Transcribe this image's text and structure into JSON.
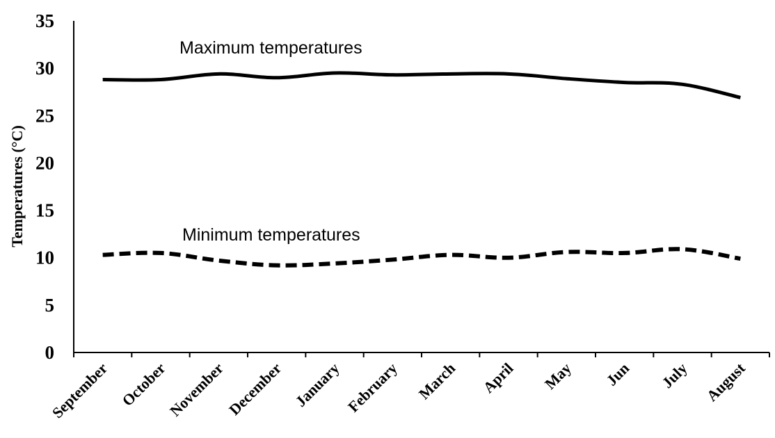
{
  "chart_data": {
    "type": "line",
    "categories": [
      "September",
      "October",
      "November",
      "December",
      "January",
      "February",
      "March",
      "April",
      "May",
      "Jun",
      "July",
      "August"
    ],
    "series": [
      {
        "name": "Maximum temperatures",
        "values": [
          28.8,
          28.8,
          29.4,
          29.0,
          29.5,
          29.3,
          29.4,
          29.4,
          28.9,
          28.5,
          28.3,
          26.9
        ],
        "style": "solid",
        "color": "#000000"
      },
      {
        "name": "Minimum temperatures",
        "values": [
          10.3,
          10.5,
          9.7,
          9.2,
          9.4,
          9.8,
          10.3,
          10.0,
          10.6,
          10.5,
          10.9,
          9.9
        ],
        "style": "dashed",
        "color": "#000000"
      }
    ],
    "title": "",
    "xlabel": "",
    "ylabel": "Temperatures (°C)",
    "ylim": [
      0,
      35
    ],
    "yticks": [
      "0",
      "5",
      "10",
      "15",
      "20",
      "25",
      "30",
      "35"
    ],
    "grid": false,
    "legend": "inline labels"
  }
}
